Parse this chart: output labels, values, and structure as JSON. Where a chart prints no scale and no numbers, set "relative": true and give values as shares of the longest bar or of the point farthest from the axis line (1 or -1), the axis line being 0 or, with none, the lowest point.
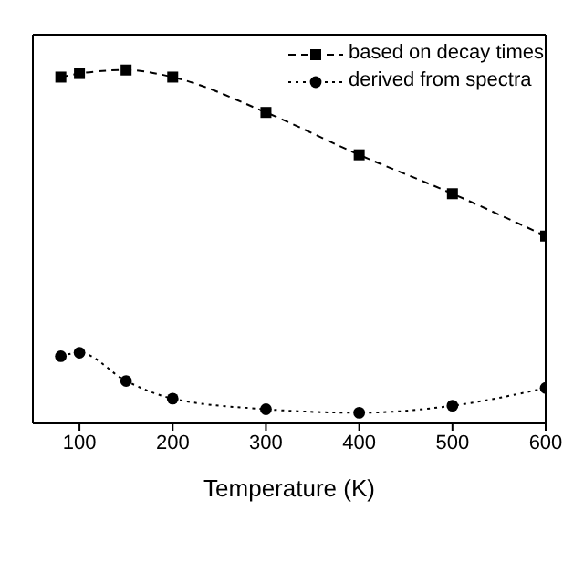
{
  "chart_data": {
    "type": "line",
    "xlabel": "Temperature (K)",
    "x": [
      80,
      100,
      150,
      200,
      300,
      400,
      500,
      600
    ],
    "series": [
      {
        "name": "based on decay times",
        "color": "#000000",
        "values": [
          0.98,
          0.99,
          1,
          0.98,
          0.88,
          0.76,
          0.65,
          0.53
        ],
        "marker": "square",
        "line_style": "dashed"
      },
      {
        "name": "derived from spectra",
        "color": "#000000",
        "values": [
          0.19,
          0.2,
          0.12,
          0.07,
          0.04,
          0.03,
          0.05,
          0.1
        ],
        "marker": "circle",
        "line_style": "dotted"
      }
    ],
    "xlim": [
      50,
      600
    ],
    "xticks": [
      100,
      200,
      300,
      400,
      500,
      600
    ],
    "relative": true,
    "legend": "top right",
    "grid": false
  }
}
